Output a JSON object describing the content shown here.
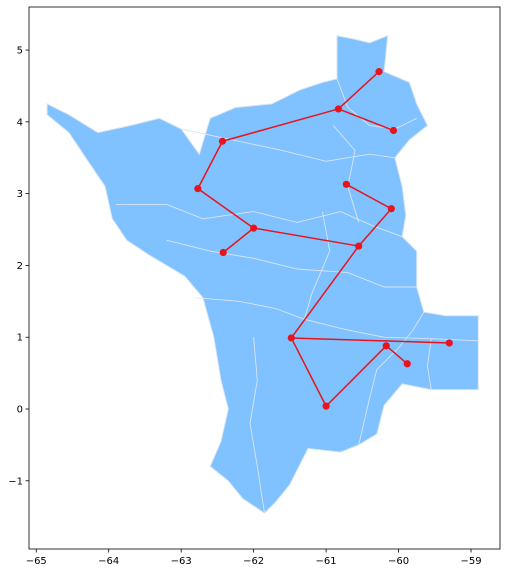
{
  "chart_data": {
    "type": "scatter",
    "subtype": "map-with-network",
    "title": "",
    "xlabel": "",
    "ylabel": "",
    "xlim": [
      -65.1,
      -58.6
    ],
    "ylim": [
      -1.95,
      5.6
    ],
    "grid": false,
    "x_ticks": [
      {
        "value": -65,
        "label": "−65"
      },
      {
        "value": -64,
        "label": "−64"
      },
      {
        "value": -63,
        "label": "−63"
      },
      {
        "value": -62,
        "label": "−62"
      },
      {
        "value": -61,
        "label": "−61"
      },
      {
        "value": -60,
        "label": "−60"
      },
      {
        "value": -59,
        "label": "−59"
      }
    ],
    "y_ticks": [
      {
        "value": -1,
        "label": "−1"
      },
      {
        "value": 0,
        "label": "0"
      },
      {
        "value": 1,
        "label": "1"
      },
      {
        "value": 2,
        "label": "2"
      },
      {
        "value": 3,
        "label": "3"
      },
      {
        "value": 4,
        "label": "4"
      },
      {
        "value": 5,
        "label": "5"
      }
    ],
    "colors": {
      "region_fill": "#80c1ff",
      "region_border": "#d8e6f2",
      "network": "#e8141b"
    },
    "nodes": [
      {
        "id": "n1",
        "x": -60.27,
        "y": 4.7
      },
      {
        "id": "n2",
        "x": -60.83,
        "y": 4.18
      },
      {
        "id": "n3",
        "x": -60.07,
        "y": 3.88
      },
      {
        "id": "n4",
        "x": -62.43,
        "y": 3.73
      },
      {
        "id": "n5",
        "x": -62.77,
        "y": 3.07
      },
      {
        "id": "n6",
        "x": -60.72,
        "y": 3.13
      },
      {
        "id": "n7",
        "x": -60.1,
        "y": 2.79
      },
      {
        "id": "n8",
        "x": -62.0,
        "y": 2.52
      },
      {
        "id": "n9",
        "x": -60.55,
        "y": 2.27
      },
      {
        "id": "n10",
        "x": -62.42,
        "y": 2.18
      },
      {
        "id": "n11",
        "x": -61.48,
        "y": 0.99
      },
      {
        "id": "n12",
        "x": -59.3,
        "y": 0.92
      },
      {
        "id": "n13",
        "x": -60.17,
        "y": 0.88
      },
      {
        "id": "n14",
        "x": -59.88,
        "y": 0.63
      },
      {
        "id": "n15",
        "x": -61.0,
        "y": 0.04
      }
    ],
    "edges": [
      [
        "n1",
        "n2"
      ],
      [
        "n2",
        "n3"
      ],
      [
        "n2",
        "n4"
      ],
      [
        "n4",
        "n5"
      ],
      [
        "n5",
        "n8"
      ],
      [
        "n8",
        "n10"
      ],
      [
        "n8",
        "n9"
      ],
      [
        "n6",
        "n7"
      ],
      [
        "n7",
        "n9"
      ],
      [
        "n9",
        "n11"
      ],
      [
        "n11",
        "n12"
      ],
      [
        "n11",
        "n15"
      ],
      [
        "n15",
        "n13"
      ],
      [
        "n13",
        "n14"
      ]
    ],
    "region_outline": [
      [
        -64.85,
        4.25
      ],
      [
        -64.55,
        4.1
      ],
      [
        -64.15,
        3.85
      ],
      [
        -63.7,
        3.95
      ],
      [
        -63.3,
        4.05
      ],
      [
        -63.0,
        3.9
      ],
      [
        -62.75,
        3.55
      ],
      [
        -62.6,
        4.05
      ],
      [
        -62.25,
        4.2
      ],
      [
        -61.75,
        4.25
      ],
      [
        -61.35,
        4.45
      ],
      [
        -61.05,
        4.55
      ],
      [
        -60.85,
        4.6
      ],
      [
        -60.85,
        5.2
      ],
      [
        -60.6,
        5.15
      ],
      [
        -60.4,
        5.1
      ],
      [
        -60.15,
        5.2
      ],
      [
        -60.2,
        4.7
      ],
      [
        -59.85,
        4.55
      ],
      [
        -59.75,
        4.25
      ],
      [
        -59.6,
        3.95
      ],
      [
        -59.85,
        3.75
      ],
      [
        -60.05,
        3.5
      ],
      [
        -59.95,
        3.1
      ],
      [
        -59.9,
        2.7
      ],
      [
        -59.95,
        2.4
      ],
      [
        -59.75,
        2.2
      ],
      [
        -59.75,
        1.7
      ],
      [
        -59.65,
        1.35
      ],
      [
        -59.35,
        1.3
      ],
      [
        -58.9,
        1.3
      ],
      [
        -58.9,
        0.27
      ],
      [
        -59.55,
        0.27
      ],
      [
        -59.95,
        0.35
      ],
      [
        -60.2,
        0.05
      ],
      [
        -60.3,
        -0.35
      ],
      [
        -60.55,
        -0.5
      ],
      [
        -60.8,
        -0.6
      ],
      [
        -61.25,
        -0.55
      ],
      [
        -61.5,
        -1.05
      ],
      [
        -61.7,
        -1.3
      ],
      [
        -61.85,
        -1.45
      ],
      [
        -62.15,
        -1.25
      ],
      [
        -62.35,
        -1.0
      ],
      [
        -62.6,
        -0.8
      ],
      [
        -62.45,
        -0.45
      ],
      [
        -62.35,
        0.0
      ],
      [
        -62.45,
        0.4
      ],
      [
        -62.55,
        1.0
      ],
      [
        -62.7,
        1.55
      ],
      [
        -62.95,
        1.85
      ],
      [
        -63.45,
        2.15
      ],
      [
        -63.75,
        2.35
      ],
      [
        -63.95,
        2.65
      ],
      [
        -64.05,
        3.1
      ],
      [
        -64.35,
        3.55
      ],
      [
        -64.55,
        3.85
      ],
      [
        -64.85,
        4.1
      ],
      [
        -64.85,
        4.25
      ]
    ],
    "internal_borders": [
      [
        [
          -63.0,
          3.9
        ],
        [
          -62.3,
          3.75
        ],
        [
          -61.6,
          3.6
        ],
        [
          -61.0,
          3.45
        ],
        [
          -60.4,
          3.55
        ],
        [
          -60.05,
          3.5
        ]
      ],
      [
        [
          -63.9,
          2.85
        ],
        [
          -63.2,
          2.85
        ],
        [
          -62.7,
          2.65
        ],
        [
          -62.0,
          2.75
        ],
        [
          -61.4,
          2.6
        ],
        [
          -60.8,
          2.75
        ],
        [
          -60.35,
          2.55
        ],
        [
          -59.95,
          2.4
        ]
      ],
      [
        [
          -63.2,
          2.35
        ],
        [
          -62.6,
          2.2
        ],
        [
          -62.0,
          2.1
        ],
        [
          -61.4,
          1.95
        ],
        [
          -60.7,
          1.9
        ],
        [
          -60.2,
          1.7
        ],
        [
          -59.75,
          1.7
        ]
      ],
      [
        [
          -62.8,
          1.55
        ],
        [
          -62.2,
          1.5
        ],
        [
          -61.7,
          1.4
        ],
        [
          -61.3,
          1.25
        ],
        [
          -60.7,
          1.1
        ],
        [
          -60.2,
          1.0
        ],
        [
          -59.55,
          0.98
        ],
        [
          -58.9,
          0.95
        ]
      ],
      [
        [
          -62.0,
          1.0
        ],
        [
          -61.95,
          0.4
        ],
        [
          -62.05,
          -0.2
        ],
        [
          -61.95,
          -0.8
        ],
        [
          -61.85,
          -1.45
        ]
      ],
      [
        [
          -61.05,
          2.75
        ],
        [
          -60.95,
          2.2
        ],
        [
          -61.2,
          1.6
        ],
        [
          -61.3,
          1.25
        ]
      ],
      [
        [
          -60.9,
          3.95
        ],
        [
          -60.6,
          3.6
        ],
        [
          -60.7,
          3.1
        ],
        [
          -60.55,
          2.6
        ]
      ],
      [
        [
          -60.85,
          4.6
        ],
        [
          -60.7,
          4.2
        ],
        [
          -60.4,
          3.95
        ],
        [
          -60.05,
          3.9
        ],
        [
          -59.75,
          4.05
        ]
      ],
      [
        [
          -59.65,
          1.35
        ],
        [
          -59.8,
          1.1
        ],
        [
          -60.0,
          0.85
        ],
        [
          -60.3,
          0.55
        ],
        [
          -60.4,
          0.15
        ],
        [
          -60.55,
          -0.5
        ]
      ],
      [
        [
          -59.55,
          0.98
        ],
        [
          -59.6,
          0.6
        ],
        [
          -59.55,
          0.27
        ]
      ]
    ]
  }
}
